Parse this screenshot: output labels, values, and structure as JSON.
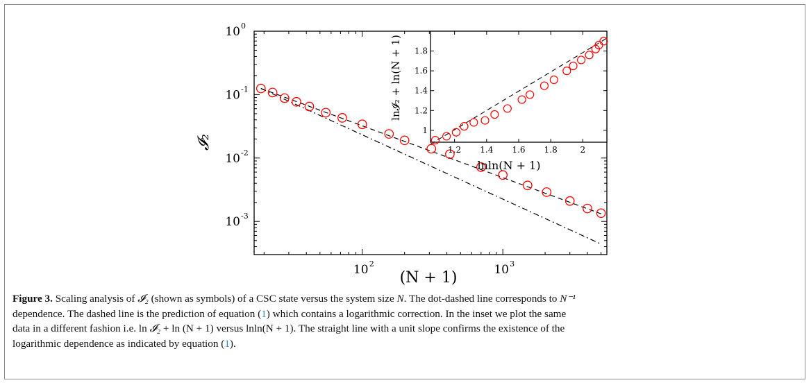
{
  "chart_data": [
    {
      "type": "scatter",
      "xlabel": "(N + 1)",
      "ylabel": "𝓘₂",
      "xscale": "log",
      "yscale": "log",
      "xlim": [
        17,
        5500
      ],
      "ylim": [
        0.0003,
        1
      ],
      "x_ticks": [
        {
          "value": 100,
          "base": "10",
          "exp": "2"
        },
        {
          "value": 1000,
          "base": "10",
          "exp": "3"
        }
      ],
      "y_ticks": [
        {
          "value": 1,
          "base": "10",
          "exp": "0"
        },
        {
          "value": 0.1,
          "base": "10",
          "exp": "-1"
        },
        {
          "value": 0.01,
          "base": "10",
          "exp": "-2"
        },
        {
          "value": 0.001,
          "base": "10",
          "exp": "-3"
        }
      ],
      "grid": false,
      "series": [
        {
          "marker": "open-circle",
          "color": "#ff0000",
          "x": [
            19,
            23,
            28,
            34,
            42,
            55,
            72,
            100,
            155,
            200,
            310,
            420,
            700,
            1000,
            1500,
            2050,
            3000,
            4000,
            5000
          ],
          "y": [
            0.125,
            0.108,
            0.088,
            0.077,
            0.065,
            0.052,
            0.043,
            0.034,
            0.024,
            0.019,
            0.014,
            0.0115,
            0.0072,
            0.0054,
            0.0037,
            0.0029,
            0.0021,
            0.0016,
            0.00135
          ]
        },
        {
          "style": "dashed",
          "color": "#000000",
          "x": [
            19,
            5000
          ],
          "y": [
            0.125,
            0.00132
          ]
        },
        {
          "style": "dash-dot",
          "color": "#000000",
          "x": [
            19,
            5000
          ],
          "y": [
            0.125,
            0.00044
          ]
        }
      ]
    },
    {
      "type": "scatter",
      "inset": true,
      "xlabel": "lnln(N + 1)",
      "ylabel": "ln𝓘₂ + ln(N + 1)",
      "xlim": [
        1.05,
        2.15
      ],
      "ylim": [
        0.88,
        2.0
      ],
      "x_ticks": [
        "1.2",
        "1.4",
        "1.6",
        "1.8",
        "2"
      ],
      "y_ticks": [
        "1",
        "1.2",
        "1.4",
        "1.6",
        "1.8"
      ],
      "x_tick_values": [
        1.2,
        1.4,
        1.6,
        1.8,
        2.0
      ],
      "y_tick_values": [
        1.0,
        1.2,
        1.4,
        1.6,
        1.8
      ],
      "grid": false,
      "series": [
        {
          "marker": "open-circle",
          "color": "#ff0000",
          "x": [
            1.08,
            1.15,
            1.21,
            1.26,
            1.32,
            1.39,
            1.45,
            1.53,
            1.62,
            1.67,
            1.76,
            1.82,
            1.9,
            1.94,
            1.99,
            2.04,
            2.08,
            2.1,
            2.13
          ],
          "y": [
            0.9,
            0.94,
            0.98,
            1.04,
            1.08,
            1.1,
            1.16,
            1.22,
            1.31,
            1.36,
            1.45,
            1.51,
            1.6,
            1.65,
            1.71,
            1.76,
            1.82,
            1.86,
            1.9
          ]
        },
        {
          "style": "dashed",
          "color": "#000000",
          "x": [
            1.05,
            2.15
          ],
          "y": [
            0.86,
            1.93
          ]
        }
      ]
    }
  ],
  "caption": {
    "label": "Figure 3.",
    "line1a": " Scaling analysis of ",
    "i2": "𝓘₂",
    "line1b": " (shown as symbols) of a CSC state versus the system size ",
    "N": "N",
    "line1c": ". The dot-dashed line corresponds to ",
    "nexp": "N⁻¹",
    "line2a": "dependence. The dashed line is the prediction of equation (",
    "ref1": "1",
    "line2b": ") which contains a logarithmic correction. In the inset we plot the same",
    "line3a": "data in a different fashion i.e. ln ",
    "line3b": " + ln (N + 1) versus lnln(N + 1). The straight line with a unit slope confirms the existence of the",
    "line4a": "logarithmic dependence as indicated by equation (",
    "ref2": "1",
    "line4b": ")."
  }
}
